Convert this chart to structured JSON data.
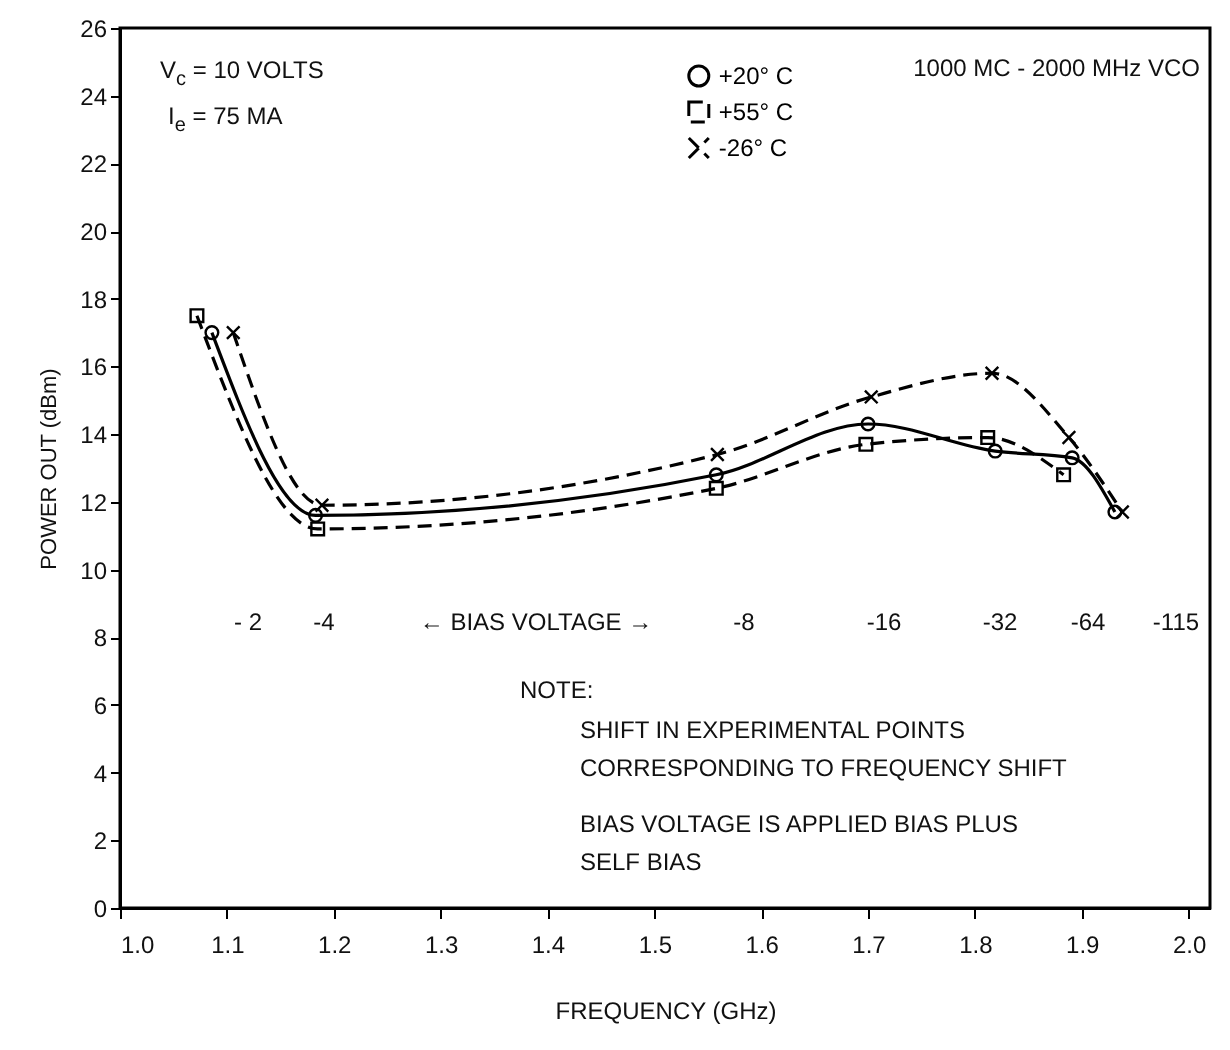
{
  "chart_data": {
    "type": "line",
    "xlabel": "FREQUENCY (GHz)",
    "ylabel": "POWER OUT (dBm)",
    "xlim": [
      1.0,
      2.02
    ],
    "xticks": [
      {
        "value": 1.0,
        "label": "1.0"
      },
      1.1,
      1.2,
      1.3,
      1.4,
      1.5,
      1.6,
      1.7,
      1.8,
      1.9,
      {
        "value": 2.0,
        "label": "2.0"
      }
    ],
    "ylim": [
      0,
      26
    ],
    "yticks": [
      0,
      2,
      4,
      6,
      8,
      10,
      12,
      14,
      16,
      18,
      20,
      22,
      24,
      26
    ],
    "grid": false,
    "legend": "top right",
    "series": [
      {
        "name": "+20° C",
        "color": "#000000",
        "marker": "circle",
        "line_style": "solid",
        "x": [
          1.086,
          1.183,
          1.558,
          1.7,
          1.819,
          1.891,
          1.931
        ],
        "values": [
          17.0,
          11.6,
          12.8,
          14.3,
          13.5,
          13.3,
          11.7
        ]
      },
      {
        "name": "+55° C",
        "color": "#000000",
        "marker": "square",
        "line_style": "dashed",
        "x": [
          1.072,
          1.185,
          1.558,
          1.698,
          1.812,
          1.883
        ],
        "values": [
          17.5,
          11.2,
          12.4,
          13.7,
          13.9,
          12.8
        ]
      },
      {
        "name": "-26° C",
        "color": "#000000",
        "marker": "cross",
        "line_style": "dashed",
        "x": [
          1.106,
          1.189,
          1.559,
          1.703,
          1.816,
          1.888,
          1.938
        ],
        "values": [
          17.0,
          11.9,
          13.4,
          15.1,
          15.8,
          13.9,
          11.7
        ]
      }
    ],
    "annotations": [
      "V$_{c}$ = 10 VOLTS",
      "I$_{e}$ = 75 MA",
      "1000 MC - 2000 MHz VCO",
      "NOTE:",
      "SHIFT IN EXPERIMENTAL POINTS",
      "CORRESPONDING TO FREQUENCY SHIFT",
      "BIAS VOLTAGE IS APPLIED BIAS PLUS",
      "SELF BIAS",
      "- 2",
      "-4",
      "← BIAS VOLTAGE →",
      "-8",
      "-16",
      "-32",
      "-64",
      "-115"
    ]
  }
}
